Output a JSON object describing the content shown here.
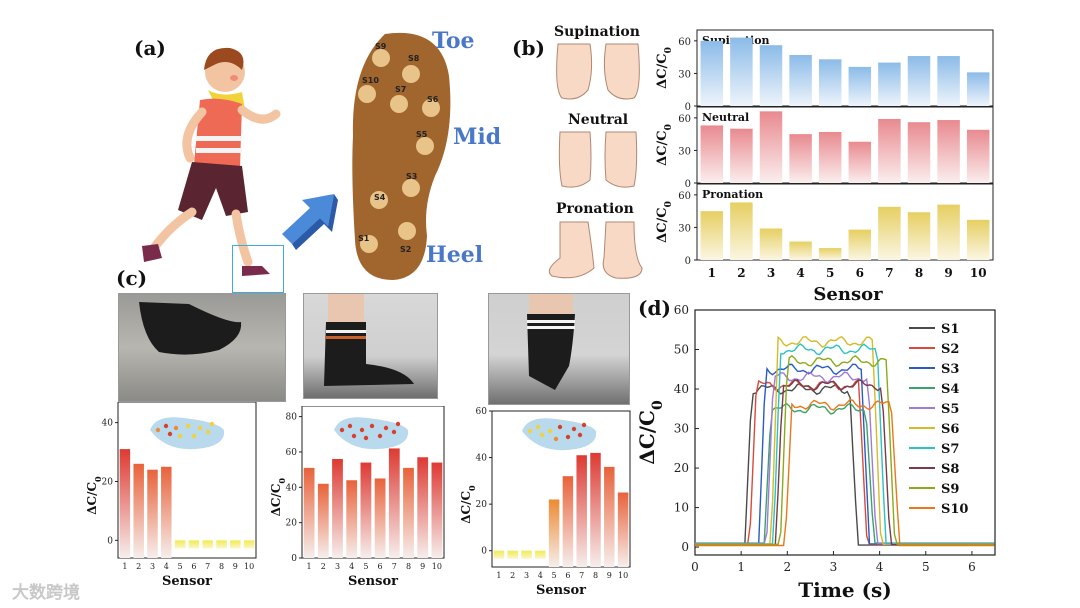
{
  "panels": {
    "a": "(a)",
    "b": "(b)",
    "c": "(c)",
    "d": "(d)"
  },
  "insole": {
    "zones": {
      "toe": "Toe",
      "mid": "Mid",
      "heel": "Heel"
    },
    "sensors": [
      "S1",
      "S2",
      "S3",
      "S4",
      "S5",
      "S6",
      "S7",
      "S8",
      "S9",
      "S10"
    ]
  },
  "postures": {
    "supination": "Supination",
    "neutral": "Neutral",
    "pronation": "Pronation"
  },
  "colors": {
    "supination": "#8bbbe8",
    "neutral": "#e88a8f",
    "pronation": "#e6cf62",
    "accent_blue": "#4a78c8"
  },
  "watermark": "大数跨境",
  "chart_data": [
    {
      "id": "b-supination",
      "type": "bar",
      "title": "Supination",
      "categories": [
        "1",
        "2",
        "3",
        "4",
        "5",
        "6",
        "7",
        "8",
        "9",
        "10"
      ],
      "values": [
        60,
        63,
        56,
        47,
        43,
        36,
        40,
        46,
        46,
        31
      ],
      "ylim": [
        0,
        70
      ],
      "yticks": [
        0,
        30,
        60
      ],
      "ylabel": "ΔC/C0",
      "xlabel": ""
    },
    {
      "id": "b-neutral",
      "type": "bar",
      "title": "Neutral",
      "categories": [
        "1",
        "2",
        "3",
        "4",
        "5",
        "6",
        "7",
        "8",
        "9",
        "10"
      ],
      "values": [
        53,
        50,
        66,
        45,
        47,
        38,
        59,
        56,
        58,
        49
      ],
      "ylim": [
        0,
        70
      ],
      "yticks": [
        0,
        30,
        60
      ],
      "ylabel": "ΔC/C0",
      "xlabel": ""
    },
    {
      "id": "b-pronation",
      "type": "bar",
      "title": "Pronation",
      "categories": [
        "1",
        "2",
        "3",
        "4",
        "5",
        "6",
        "7",
        "8",
        "9",
        "10"
      ],
      "values": [
        45,
        53,
        29,
        17,
        11,
        28,
        49,
        44,
        51,
        37
      ],
      "ylim": [
        0,
        70
      ],
      "yticks": [
        0,
        30,
        60
      ],
      "ylabel": "ΔC/C0",
      "xlabel": "Sensor"
    },
    {
      "id": "c-1",
      "type": "bar",
      "categories": [
        "1",
        "2",
        "3",
        "4",
        "5",
        "6",
        "7",
        "8",
        "9",
        "10"
      ],
      "values": [
        31,
        26,
        24,
        25,
        -2,
        -2,
        -2,
        -2,
        -2,
        -2
      ],
      "ylim": [
        -6,
        47
      ],
      "yticks": [
        0,
        20,
        40
      ],
      "ylabel": "ΔC/C0",
      "xlabel": "Sensor"
    },
    {
      "id": "c-2",
      "type": "bar",
      "categories": [
        "1",
        "2",
        "3",
        "4",
        "5",
        "6",
        "7",
        "8",
        "9",
        "10"
      ],
      "values": [
        51,
        42,
        56,
        44,
        54,
        45,
        62,
        51,
        57,
        54
      ],
      "ylim": [
        0,
        86
      ],
      "yticks": [
        0,
        20,
        40,
        60,
        80
      ],
      "ylabel": "ΔC/C0",
      "xlabel": "Sensor"
    },
    {
      "id": "c-3",
      "type": "bar",
      "categories": [
        "1",
        "2",
        "3",
        "4",
        "5",
        "6",
        "7",
        "8",
        "9",
        "10"
      ],
      "values": [
        -2,
        -2,
        -2,
        -2,
        22,
        32,
        41,
        42,
        36,
        25
      ],
      "ylim": [
        -7,
        60
      ],
      "yticks": [
        0,
        20,
        40,
        60
      ],
      "ylabel": "ΔC/C0",
      "xlabel": "Sensor"
    },
    {
      "id": "d",
      "type": "line",
      "xlabel": "Time (s)",
      "ylabel": "ΔC/C0",
      "xlim": [
        0,
        6.5
      ],
      "ylim": [
        -2,
        60
      ],
      "xticks": [
        0,
        1,
        2,
        3,
        4,
        5,
        6
      ],
      "yticks": [
        0,
        10,
        20,
        30,
        40,
        50,
        60
      ],
      "series": [
        {
          "name": "S1",
          "color": "#4a4a4a",
          "baseline": 0.5,
          "plateau": 40,
          "rise": 1.08,
          "fall": 3.35
        },
        {
          "name": "S2",
          "color": "#d84a3a",
          "baseline": 0.6,
          "plateau": 41,
          "rise": 1.18,
          "fall": 3.55
        },
        {
          "name": "S3",
          "color": "#2a5bbf",
          "baseline": 0.8,
          "plateau": 45,
          "rise": 1.38,
          "fall": 3.6
        },
        {
          "name": "S4",
          "color": "#3aa36a",
          "baseline": 1.0,
          "plateau": 35,
          "rise": 1.5,
          "fall": 3.7
        },
        {
          "name": "S5",
          "color": "#a07ad8",
          "baseline": 0.9,
          "plateau": 43,
          "rise": 1.55,
          "fall": 3.75
        },
        {
          "name": "S6",
          "color": "#d4bb2a",
          "baseline": 0.7,
          "plateau": 52,
          "rise": 1.65,
          "fall": 3.85
        },
        {
          "name": "S7",
          "color": "#2ac2c2",
          "baseline": 0.8,
          "plateau": 50,
          "rise": 1.7,
          "fall": 3.95
        },
        {
          "name": "S8",
          "color": "#7a3a4a",
          "baseline": 0.6,
          "plateau": 41,
          "rise": 1.75,
          "fall": 4.05
        },
        {
          "name": "S9",
          "color": "#8aaa1a",
          "baseline": 0.7,
          "plateau": 47,
          "rise": 1.85,
          "fall": 4.15
        },
        {
          "name": "S10",
          "color": "#e8781a",
          "baseline": 0.4,
          "plateau": 36,
          "rise": 1.95,
          "fall": 4.25
        }
      ]
    }
  ]
}
